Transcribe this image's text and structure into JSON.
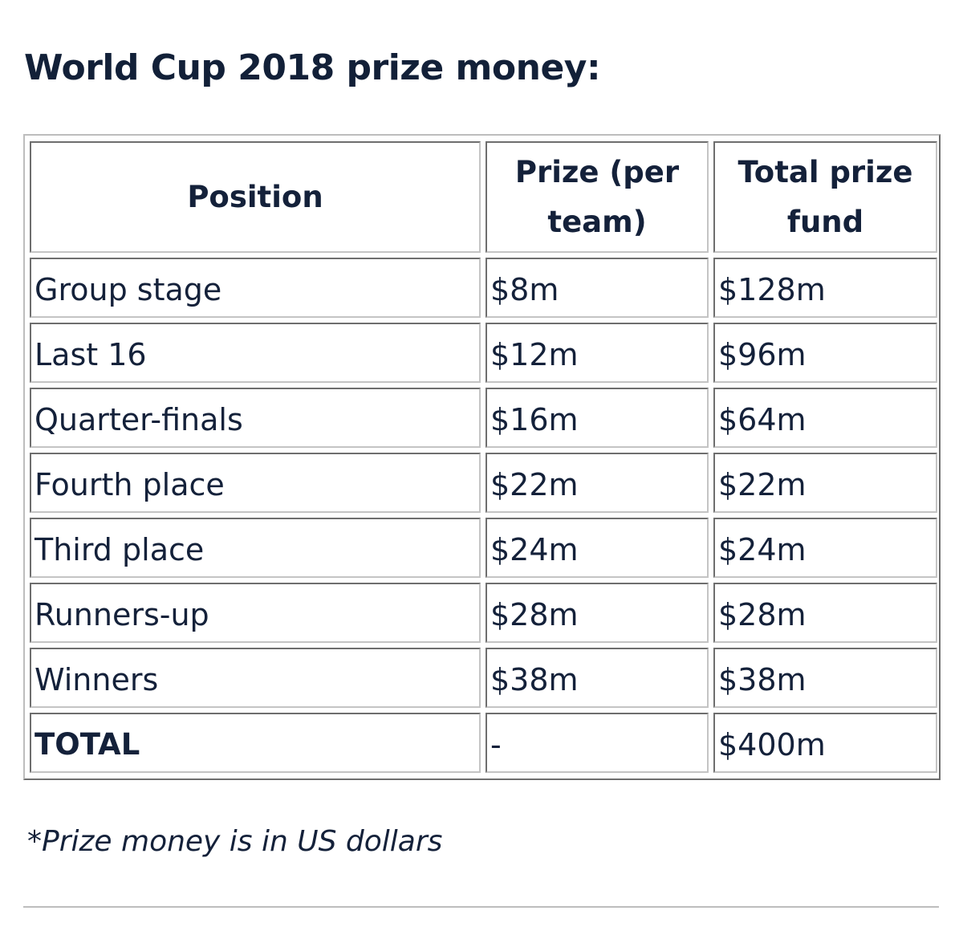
{
  "title": "World Cup 2018 prize money:",
  "table": {
    "headers": {
      "position": "Position",
      "prize_per_team": "Prize (per team)",
      "total_prize_fund": "Total prize fund"
    },
    "rows": [
      {
        "position": "Group stage",
        "prize": "$8m",
        "total": "$128m"
      },
      {
        "position": "Last 16",
        "prize": "$12m",
        "total": "$96m"
      },
      {
        "position": "Quarter-finals",
        "prize": "$16m",
        "total": "$64m"
      },
      {
        "position": "Fourth place",
        "prize": "$22m",
        "total": "$22m"
      },
      {
        "position": "Third place",
        "prize": "$24m",
        "total": "$24m"
      },
      {
        "position": "Runners-up",
        "prize": "$28m",
        "total": "$28m"
      },
      {
        "position": "Winners",
        "prize": "$38m",
        "total": "$38m"
      }
    ],
    "total_row": {
      "position": "TOTAL",
      "prize": "-",
      "total": "$400m"
    }
  },
  "footnote": "*Prize money is in US dollars",
  "colors": {
    "text": "#14213a",
    "border_dark": "#6e6e6e",
    "border_light": "#c4c4c4"
  }
}
